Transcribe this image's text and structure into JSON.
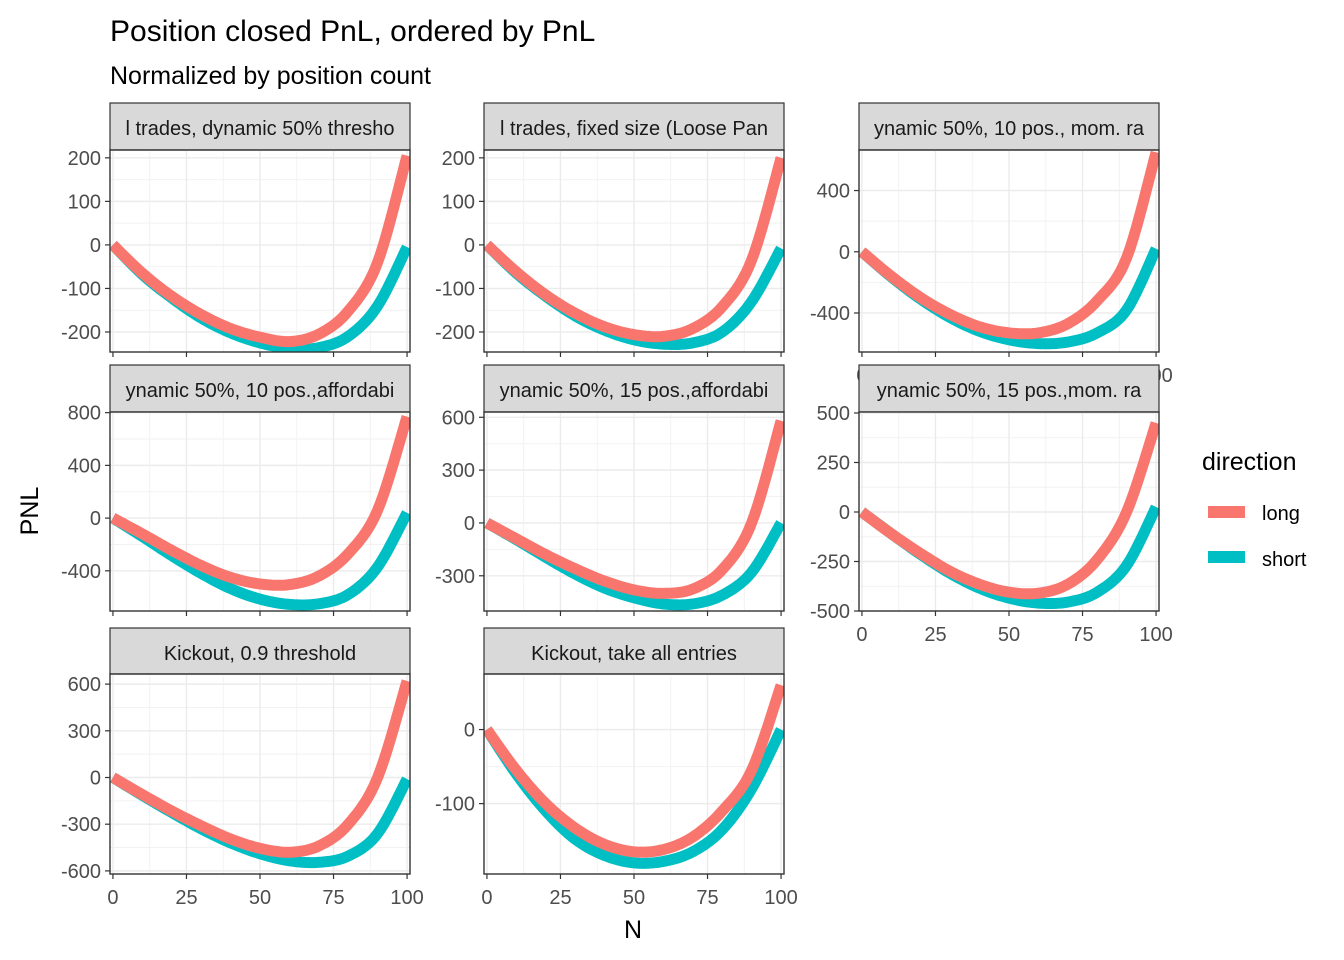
{
  "chart_data": {
    "type": "line",
    "title": "Position closed PnL, ordered by PnL",
    "subtitle": "Normalized by position count",
    "xlabel": "N",
    "ylabel": "PNL",
    "grid": true,
    "legend": {
      "title": "direction",
      "placement": "right",
      "entries": [
        {
          "label": "long",
          "color": "#F8766D"
        },
        {
          "label": "short",
          "color": "#00BFC4"
        }
      ]
    },
    "x_ticks": [
      0,
      25,
      50,
      75,
      100
    ],
    "x_tick_labels": [
      "0",
      "25",
      "50",
      "75",
      "100"
    ],
    "x_domain": [
      -1,
      101
    ],
    "series_note_ids": [
      "long",
      "short"
    ],
    "panels": [
      {
        "strip": "l trades, dynamic 50% thresho",
        "ylim": [
          -246,
          218
        ],
        "y_ticks": [
          200,
          100,
          0,
          -100,
          -200
        ],
        "y_tick_labels": [
          "200",
          "100",
          "0",
          "-100",
          "-200"
        ],
        "series": [
          {
            "name": "long",
            "points": [
              [
                0,
                0
              ],
              [
                10,
                -65
              ],
              [
                20,
                -118
              ],
              [
                30,
                -160
              ],
              [
                40,
                -192
              ],
              [
                50,
                -212
              ],
              [
                60,
                -222
              ],
              [
                70,
                -205
              ],
              [
                80,
                -152
              ],
              [
                90,
                -40
              ],
              [
                100,
                205
              ]
            ]
          },
          {
            "name": "short",
            "points": [
              [
                0,
                0
              ],
              [
                10,
                -68
              ],
              [
                20,
                -122
              ],
              [
                30,
                -168
              ],
              [
                40,
                -202
              ],
              [
                50,
                -225
              ],
              [
                60,
                -238
              ],
              [
                70,
                -236
              ],
              [
                80,
                -210
              ],
              [
                90,
                -140
              ],
              [
                100,
                -5
              ]
            ]
          }
        ]
      },
      {
        "strip": "l trades, fixed size (Loose Pan",
        "ylim": [
          -246,
          218
        ],
        "y_ticks": [
          200,
          100,
          0,
          -100,
          -200
        ],
        "y_tick_labels": [
          "200",
          "100",
          "0",
          "-100",
          "-200"
        ],
        "series": [
          {
            "name": "long",
            "points": [
              [
                0,
                0
              ],
              [
                10,
                -62
              ],
              [
                20,
                -115
              ],
              [
                30,
                -157
              ],
              [
                40,
                -188
              ],
              [
                50,
                -206
              ],
              [
                60,
                -210
              ],
              [
                70,
                -192
              ],
              [
                80,
                -142
              ],
              [
                90,
                -35
              ],
              [
                100,
                200
              ]
            ]
          },
          {
            "name": "short",
            "points": [
              [
                0,
                0
              ],
              [
                10,
                -65
              ],
              [
                20,
                -118
              ],
              [
                30,
                -163
              ],
              [
                40,
                -196
              ],
              [
                50,
                -218
              ],
              [
                60,
                -228
              ],
              [
                70,
                -225
              ],
              [
                80,
                -200
              ],
              [
                90,
                -130
              ],
              [
                100,
                -8
              ]
            ]
          }
        ]
      },
      {
        "strip": "ynamic 50%, 10 pos., mom. ra",
        "ylim": [
          -655,
          665
        ],
        "y_ticks": [
          400,
          0,
          -400
        ],
        "y_tick_labels": [
          "400",
          "0",
          "-400"
        ],
        "series": [
          {
            "name": "long",
            "points": [
              [
                0,
                0
              ],
              [
                10,
                -160
              ],
              [
                20,
                -300
              ],
              [
                30,
                -410
              ],
              [
                40,
                -490
              ],
              [
                50,
                -530
              ],
              [
                60,
                -530
              ],
              [
                70,
                -470
              ],
              [
                80,
                -320
              ],
              [
                90,
                -40
              ],
              [
                100,
                650
              ]
            ]
          },
          {
            "name": "short",
            "points": [
              [
                0,
                0
              ],
              [
                10,
                -165
              ],
              [
                20,
                -310
              ],
              [
                30,
                -430
              ],
              [
                40,
                -520
              ],
              [
                50,
                -575
              ],
              [
                60,
                -600
              ],
              [
                70,
                -590
              ],
              [
                80,
                -530
              ],
              [
                90,
                -380
              ],
              [
                100,
                20
              ]
            ]
          }
        ]
      },
      {
        "strip": "ynamic 50%, 10 pos.,affordabi",
        "ylim": [
          -705,
          805
        ],
        "y_ticks": [
          800,
          400,
          0,
          -400
        ],
        "y_tick_labels": [
          "800",
          "400",
          "0",
          "-400"
        ],
        "series": [
          {
            "name": "long",
            "points": [
              [
                0,
                0
              ],
              [
                10,
                -120
              ],
              [
                20,
                -245
              ],
              [
                30,
                -360
              ],
              [
                40,
                -450
              ],
              [
                50,
                -500
              ],
              [
                60,
                -505
              ],
              [
                70,
                -440
              ],
              [
                80,
                -270
              ],
              [
                90,
                60
              ],
              [
                100,
                770
              ]
            ]
          },
          {
            "name": "short",
            "points": [
              [
                0,
                0
              ],
              [
                10,
                -140
              ],
              [
                20,
                -285
              ],
              [
                30,
                -420
              ],
              [
                40,
                -535
              ],
              [
                50,
                -615
              ],
              [
                60,
                -655
              ],
              [
                70,
                -650
              ],
              [
                80,
                -580
              ],
              [
                90,
                -370
              ],
              [
                100,
                40
              ]
            ]
          }
        ]
      },
      {
        "strip": "ynamic 50%, 15 pos.,affordabi",
        "ylim": [
          -500,
          630
        ],
        "y_ticks": [
          600,
          300,
          0,
          -300
        ],
        "y_tick_labels": [
          "600",
          "300",
          "0",
          "-300"
        ],
        "series": [
          {
            "name": "long",
            "points": [
              [
                0,
                0
              ],
              [
                10,
                -90
              ],
              [
                20,
                -180
              ],
              [
                30,
                -260
              ],
              [
                40,
                -330
              ],
              [
                50,
                -380
              ],
              [
                60,
                -400
              ],
              [
                70,
                -375
              ],
              [
                80,
                -265
              ],
              [
                90,
                0
              ],
              [
                100,
                580
              ]
            ]
          },
          {
            "name": "short",
            "points": [
              [
                0,
                0
              ],
              [
                10,
                -95
              ],
              [
                20,
                -195
              ],
              [
                30,
                -290
              ],
              [
                40,
                -370
              ],
              [
                50,
                -425
              ],
              [
                60,
                -460
              ],
              [
                70,
                -460
              ],
              [
                80,
                -410
              ],
              [
                90,
                -280
              ],
              [
                100,
                0
              ]
            ]
          }
        ]
      },
      {
        "strip": "ynamic 50%, 15 pos.,mom. ra",
        "ylim": [
          -500,
          505
        ],
        "y_ticks": [
          500,
          250,
          0,
          -250,
          -500
        ],
        "y_tick_labels": [
          "500",
          "250",
          "0",
          "-250",
          "-500"
        ],
        "series": [
          {
            "name": "long",
            "points": [
              [
                0,
                0
              ],
              [
                10,
                -110
              ],
              [
                20,
                -210
              ],
              [
                30,
                -300
              ],
              [
                40,
                -365
              ],
              [
                50,
                -405
              ],
              [
                60,
                -410
              ],
              [
                70,
                -365
              ],
              [
                80,
                -240
              ],
              [
                90,
                0
              ],
              [
                100,
                450
              ]
            ]
          },
          {
            "name": "short",
            "points": [
              [
                0,
                0
              ],
              [
                10,
                -110
              ],
              [
                20,
                -215
              ],
              [
                30,
                -310
              ],
              [
                40,
                -385
              ],
              [
                50,
                -435
              ],
              [
                60,
                -460
              ],
              [
                70,
                -455
              ],
              [
                80,
                -405
              ],
              [
                90,
                -270
              ],
              [
                100,
                25
              ]
            ]
          }
        ]
      },
      {
        "strip": "Kickout, 0.9 threshold",
        "ylim": [
          -620,
          665
        ],
        "y_ticks": [
          600,
          300,
          0,
          -300,
          -600
        ],
        "y_tick_labels": [
          "600",
          "300",
          "0",
          "-300",
          "-600"
        ],
        "series": [
          {
            "name": "long",
            "points": [
              [
                0,
                0
              ],
              [
                10,
                -110
              ],
              [
                20,
                -215
              ],
              [
                30,
                -310
              ],
              [
                40,
                -395
              ],
              [
                50,
                -455
              ],
              [
                60,
                -480
              ],
              [
                70,
                -440
              ],
              [
                80,
                -300
              ],
              [
                90,
                0
              ],
              [
                100,
                620
              ]
            ]
          },
          {
            "name": "short",
            "points": [
              [
                0,
                0
              ],
              [
                10,
                -115
              ],
              [
                20,
                -225
              ],
              [
                30,
                -330
              ],
              [
                40,
                -420
              ],
              [
                50,
                -490
              ],
              [
                60,
                -535
              ],
              [
                70,
                -545
              ],
              [
                80,
                -505
              ],
              [
                90,
                -360
              ],
              [
                100,
                -10
              ]
            ]
          }
        ]
      },
      {
        "strip": "Kickout, take all entries",
        "ylim": [
          -195,
          75
        ],
        "y_ticks": [
          0,
          -100
        ],
        "y_tick_labels": [
          "0",
          "-100"
        ],
        "series": [
          {
            "name": "long",
            "points": [
              [
                0,
                0
              ],
              [
                10,
                -55
              ],
              [
                20,
                -100
              ],
              [
                30,
                -133
              ],
              [
                40,
                -155
              ],
              [
                50,
                -165
              ],
              [
                60,
                -162
              ],
              [
                70,
                -145
              ],
              [
                80,
                -110
              ],
              [
                90,
                -55
              ],
              [
                100,
                60
              ]
            ]
          },
          {
            "name": "short",
            "points": [
              [
                0,
                0
              ],
              [
                10,
                -60
              ],
              [
                20,
                -110
              ],
              [
                30,
                -148
              ],
              [
                40,
                -170
              ],
              [
                50,
                -180
              ],
              [
                60,
                -178
              ],
              [
                70,
                -165
              ],
              [
                80,
                -135
              ],
              [
                90,
                -80
              ],
              [
                100,
                0
              ]
            ]
          }
        ]
      }
    ]
  }
}
